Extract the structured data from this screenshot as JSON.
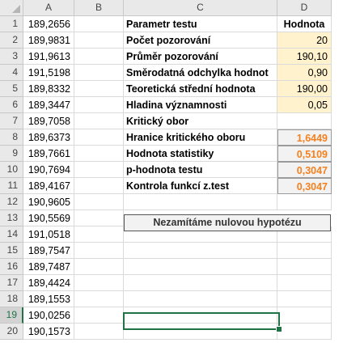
{
  "columns": [
    "A",
    "B",
    "C",
    "D"
  ],
  "rows": [
    "1",
    "2",
    "3",
    "4",
    "5",
    "6",
    "7",
    "8",
    "9",
    "10",
    "11",
    "12",
    "13",
    "14",
    "15",
    "16",
    "17",
    "18",
    "19",
    "20"
  ],
  "selected_row": "19",
  "colA": [
    "189,2656",
    "189,9831",
    "191,9613",
    "191,5198",
    "189,8332",
    "189,3447",
    "189,7058",
    "189,6373",
    "189,7661",
    "190,7694",
    "189,4167",
    "190,9605",
    "190,5569",
    "191,0518",
    "189,7547",
    "189,7487",
    "189,4424",
    "189,1553",
    "190,0256",
    "190,1573"
  ],
  "table": {
    "header_c": "Parametr testu",
    "header_d": "Hodnota",
    "params": [
      {
        "label": "Počet pozorování",
        "value": "20"
      },
      {
        "label": "Průměr pozorování",
        "value": "190,10"
      },
      {
        "label": "Směrodatná odchylka hodnot",
        "value": "0,90"
      },
      {
        "label": "Teoretická střední hodnota",
        "value": "190,00"
      },
      {
        "label": "Hladina významnosti",
        "value": "0,05"
      }
    ],
    "section": "Kritický obor",
    "results": [
      {
        "label": "Hranice kritického oboru",
        "value": "1,6449"
      },
      {
        "label": "Hodnota statistiky",
        "value": "0,5109"
      },
      {
        "label": "p-hodnota testu",
        "value": "0,3047"
      },
      {
        "label": "Kontrola funkcí z.test",
        "value": "0,3047"
      }
    ],
    "conclusion": "Nezamítáme nulovou hypotézu"
  },
  "colors": {
    "input_fill": "#fff2cc",
    "output_text": "#f4801f",
    "selection": "#217346"
  }
}
